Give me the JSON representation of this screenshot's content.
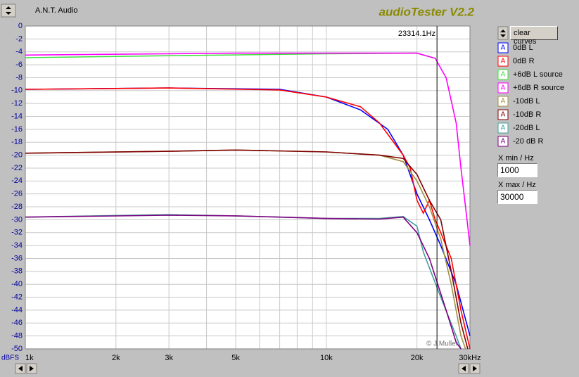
{
  "app": {
    "brand": "A.N.T. Audio",
    "title": "audioTester V2.2",
    "clear_button": "clear curves",
    "xmin_label": "X min / Hz",
    "xmin_value": "1000",
    "xmax_label": "X max / Hz",
    "xmax_value": "30000",
    "copyright": "© J.Muller",
    "legend_icon_text": "A"
  },
  "chart_data": {
    "type": "line",
    "ylabel": "dBFS",
    "xscale": "log",
    "grid": true,
    "xlim": [
      1000,
      30000
    ],
    "ylim": [
      -50,
      0
    ],
    "xticks": [
      {
        "value": 1000,
        "label": "1k"
      },
      {
        "value": 2000,
        "label": "2k"
      },
      {
        "value": 3000,
        "label": "3k"
      },
      {
        "value": 5000,
        "label": "5k"
      },
      {
        "value": 10000,
        "label": "10k"
      },
      {
        "value": 20000,
        "label": "20k"
      },
      {
        "value": 30000,
        "label": "30kHz"
      }
    ],
    "xgrid": [
      4000,
      6000,
      7000,
      8000,
      9000
    ],
    "yticks": [
      0,
      -2,
      -4,
      -6,
      -8,
      -10,
      -12,
      -14,
      -16,
      -18,
      -20,
      -22,
      -24,
      -26,
      -28,
      -30,
      -32,
      -34,
      -36,
      -38,
      -40,
      -42,
      -44,
      -46,
      -48,
      -50
    ],
    "cursor": {
      "value": 23314.1,
      "label": "23314.1Hz"
    },
    "series": [
      {
        "name": "0dB L",
        "color": "#0000ff",
        "x": [
          1000,
          3000,
          7000,
          10000,
          13000,
          16000,
          18000,
          20000,
          22000,
          24000,
          27000,
          30000
        ],
        "values": [
          -9.8,
          -9.6,
          -9.8,
          -11,
          -13,
          -16,
          -20,
          -26,
          -30,
          -34,
          -40,
          -48
        ]
      },
      {
        "name": "0dB R",
        "color": "#ff0000",
        "x": [
          1000,
          3000,
          7000,
          10000,
          13000,
          15000,
          18000,
          19000,
          20000,
          21000,
          22000,
          23000,
          24000,
          26000,
          28000,
          30000
        ],
        "values": [
          -9.8,
          -9.6,
          -9.9,
          -11,
          -12.5,
          -15,
          -20,
          -22,
          -27,
          -29,
          -27,
          -30,
          -32,
          -36,
          -44,
          -50
        ]
      },
      {
        "name": "+6dB L source",
        "color": "#40e040",
        "x": [
          1000,
          3000,
          10000,
          20000,
          23000
        ],
        "values": [
          -4.9,
          -4.6,
          -4.3,
          -4.2,
          -5
        ]
      },
      {
        "name": "+6dB R source",
        "color": "#ff00ff",
        "x": [
          1000,
          5000,
          20000,
          23000,
          25000,
          27000,
          28000,
          29000,
          30000
        ],
        "values": [
          -4.5,
          -4.2,
          -4.2,
          -5,
          -8,
          -15,
          -22,
          -28,
          -34
        ]
      },
      {
        "name": "-10dB L",
        "color": "#a09040",
        "x": [
          1000,
          3000,
          5000,
          10000,
          15000,
          18000,
          20000,
          22000,
          24000,
          26000,
          28000,
          29000
        ],
        "values": [
          -19.7,
          -19.4,
          -19.2,
          -19.5,
          -20,
          -21,
          -24,
          -28,
          -33,
          -40,
          -48,
          -50
        ]
      },
      {
        "name": "-10dB R",
        "color": "#800000",
        "x": [
          1000,
          3000,
          5000,
          10000,
          15000,
          18000,
          20000,
          22000,
          24000,
          26000,
          28000,
          29500
        ],
        "values": [
          -19.7,
          -19.4,
          -19.2,
          -19.5,
          -20,
          -20.5,
          -23,
          -27,
          -30,
          -38,
          -46,
          -50
        ]
      },
      {
        "name": "-20dB L",
        "color": "#40a0a0",
        "x": [
          1000,
          3000,
          5000,
          10000,
          15000,
          18000,
          20000,
          21000,
          24000,
          27000,
          28000
        ],
        "values": [
          -29.6,
          -29.2,
          -29.4,
          -29.8,
          -29.8,
          -29.5,
          -31,
          -35,
          -42,
          -48,
          -50
        ]
      },
      {
        "name": "-20 dB R",
        "color": "#800080",
        "x": [
          1000,
          3000,
          5000,
          10000,
          15000,
          18000,
          20000,
          22000,
          25000,
          27000,
          28000
        ],
        "values": [
          -29.6,
          -29.3,
          -29.4,
          -29.8,
          -29.9,
          -29.6,
          -32,
          -36,
          -44,
          -49,
          -50
        ]
      }
    ]
  }
}
